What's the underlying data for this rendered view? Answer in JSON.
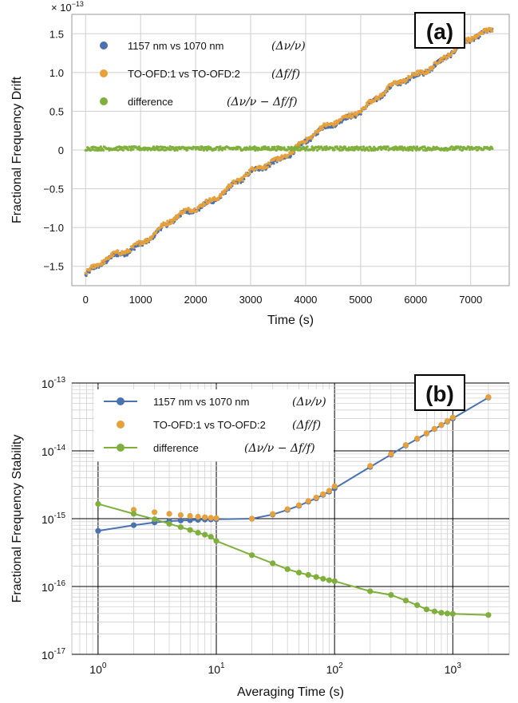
{
  "chart_data": [
    {
      "id": "a",
      "type": "line",
      "panel_label": "(a)",
      "xlabel": "Time (s)",
      "ylabel": "Fractional Frequency Drift",
      "y_multiplier": "× 10",
      "y_multiplier_exp": "−13",
      "xlim": [
        -250,
        7700
      ],
      "ylim": [
        -1.75,
        1.75
      ],
      "xticks": [
        0,
        1000,
        2000,
        3000,
        4000,
        5000,
        6000,
        7000
      ],
      "xtick_labels": [
        "0",
        "1000",
        "2000",
        "3000",
        "4000",
        "5000",
        "6000",
        "7000"
      ],
      "yticks": [
        -1.5,
        -1.0,
        -0.5,
        0,
        0.5,
        1.0,
        1.5
      ],
      "ytick_labels": [
        "−1.5",
        "−1.0",
        "−0.5",
        "0",
        "0.5",
        "1.0",
        "1.5"
      ],
      "grid": true,
      "legend_position": "top-left",
      "series": [
        {
          "name": "1157 nm vs 1070 nm",
          "formula": "(Δν/ν)",
          "color": "#4a72b0",
          "x": [
            0,
            7400
          ],
          "y": [
            -1.62,
            1.57
          ]
        },
        {
          "name": "TO-OFD:1 vs TO-OFD:2",
          "formula": "(Δf/f)",
          "color": "#e8a03a",
          "x": [
            0,
            7400
          ],
          "y": [
            -1.6,
            1.58
          ]
        },
        {
          "name": "difference",
          "formula": "(Δν/ν − Δf/f)",
          "color": "#7fb03b",
          "x": [
            0,
            7400
          ],
          "y": [
            0.02,
            0.02
          ]
        }
      ]
    },
    {
      "id": "b",
      "type": "line",
      "panel_label": "(b)",
      "xlabel": "Averaging Time (s)",
      "ylabel": "Fractional Frequency Stability",
      "x_scale": "log",
      "y_scale": "log",
      "xlim": [
        0.6,
        3000
      ],
      "ylim": [
        1e-17,
        1e-13
      ],
      "x_tick_labels": [
        {
          "base": "10",
          "exp": "0"
        },
        {
          "base": "10",
          "exp": "1"
        },
        {
          "base": "10",
          "exp": "2"
        },
        {
          "base": "10",
          "exp": "3"
        }
      ],
      "y_tick_labels": [
        {
          "base": "10",
          "exp": "-13"
        },
        {
          "base": "10",
          "exp": "-14"
        },
        {
          "base": "10",
          "exp": "-15"
        },
        {
          "base": "10",
          "exp": "-16"
        },
        {
          "base": "10",
          "exp": "-17"
        }
      ],
      "grid": true,
      "legend_position": "top-left",
      "series": [
        {
          "name": "1157 nm vs 1070 nm",
          "formula": "(Δν/ν)",
          "color": "#4a72b0",
          "style": "line-markers",
          "x": [
            1,
            2,
            3,
            4,
            5,
            6,
            7,
            8,
            9,
            10,
            20,
            30,
            40,
            50,
            60,
            70,
            80,
            90,
            100,
            200,
            300,
            400,
            500,
            600,
            700,
            800,
            900,
            1000,
            2000
          ],
          "y": [
            6.6e-16,
            8e-16,
            8.8e-16,
            9.2e-16,
            9.4e-16,
            9.5e-16,
            9.6e-16,
            9.7e-16,
            9.75e-16,
            9.8e-16,
            1e-15,
            1.15e-15,
            1.35e-15,
            1.55e-15,
            1.78e-15,
            2e-15,
            2.25e-15,
            2.5e-15,
            2.8e-15,
            5.8e-15,
            8.8e-15,
            1.2e-14,
            1.5e-14,
            1.8e-14,
            2.1e-14,
            2.4e-14,
            2.7e-14,
            3e-14,
            6.1e-14
          ]
        },
        {
          "name": "TO-OFD:1 vs TO-OFD:2",
          "formula": "(Δf/f)",
          "color": "#e8a03a",
          "style": "markers",
          "x": [
            2,
            3,
            4,
            5,
            6,
            7,
            8,
            9,
            10,
            20,
            30,
            40,
            50,
            60,
            70,
            80,
            90,
            100,
            200,
            300,
            400,
            500,
            600,
            700,
            800,
            900,
            1000,
            2000
          ],
          "y": [
            1.35e-15,
            1.25e-15,
            1.18e-15,
            1.13e-15,
            1.1e-15,
            1.07e-15,
            1.05e-15,
            1.03e-15,
            1.02e-15,
            1e-15,
            1.17e-15,
            1.38e-15,
            1.58e-15,
            1.82e-15,
            2.05e-15,
            2.3e-15,
            2.58e-15,
            3e-15,
            6e-15,
            9e-15,
            1.22e-14,
            1.52e-14,
            1.82e-14,
            2.12e-14,
            2.42e-14,
            2.75e-14,
            3.1e-14,
            6.2e-14
          ]
        },
        {
          "name": "difference",
          "formula": "(Δν/ν − Δf/f)",
          "color": "#7fb03b",
          "style": "line-markers",
          "x": [
            1,
            2,
            3,
            4,
            5,
            6,
            7,
            8,
            9,
            10,
            20,
            30,
            40,
            50,
            60,
            70,
            80,
            90,
            100,
            200,
            300,
            400,
            500,
            600,
            700,
            800,
            900,
            1000,
            2000
          ],
          "y": [
            1.65e-15,
            1.18e-15,
            9.8e-16,
            8.4e-16,
            7.5e-16,
            6.8e-16,
            6.2e-16,
            5.8e-16,
            5.4e-16,
            4.7e-16,
            2.9e-16,
            2.2e-16,
            1.8e-16,
            1.6e-16,
            1.48e-16,
            1.38e-16,
            1.3e-16,
            1.24e-16,
            1.2e-16,
            8.5e-17,
            7.5e-17,
            6.2e-17,
            5.3e-17,
            4.6e-17,
            4.3e-17,
            4.1e-17,
            4e-17,
            3.95e-17,
            3.8e-17
          ]
        }
      ]
    }
  ]
}
